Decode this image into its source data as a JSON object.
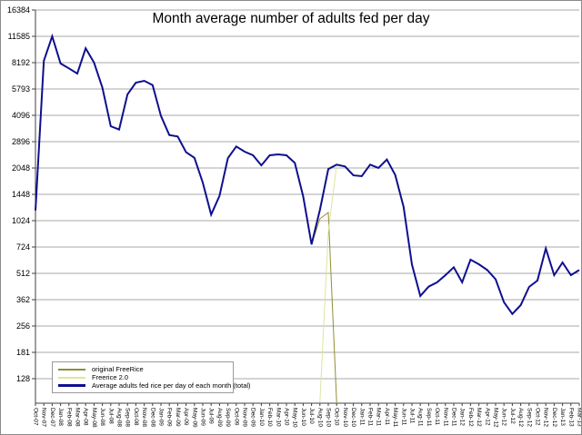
{
  "window": {
    "background": "#ffffff",
    "border_color": "#8a8a8a"
  },
  "chart_data": {
    "type": "line",
    "title": "Month average number of adults fed per day",
    "grid": "horizontal",
    "gridline_color": "#a8a8a8",
    "axis_color": "#404040",
    "tick_label_color": "#000000",
    "legend_position": "bottom-left",
    "y_axis": {
      "scale": "log2",
      "ticks": [
        16384,
        11585,
        8192,
        5793,
        4096,
        2896,
        2048,
        1448,
        1024,
        724,
        512,
        362,
        256,
        181,
        128
      ]
    },
    "x_labels": [
      "Oct-07",
      "Nov-07",
      "Dec-07",
      "Jan-08",
      "Feb-08",
      "Mar-08",
      "Apr-08",
      "May-08",
      "Jun-08",
      "Jul-08",
      "Aug-08",
      "Sep-08",
      "Oct-08",
      "Nov-08",
      "Dec-08",
      "Jan-09",
      "Feb-09",
      "Mar-09",
      "Apr-09",
      "May-09",
      "Jun-09",
      "Jul-09",
      "Aug-09",
      "Sep-09",
      "Oct-09",
      "Nov-09",
      "Dec-09",
      "Jan-10",
      "Feb-10",
      "Mar-10",
      "Apr-10",
      "May-10",
      "Jun-10",
      "Jul-10",
      "Aug-10",
      "Sep-10",
      "Oct-10",
      "Nov-10",
      "Dec-10",
      "Jan-11",
      "Feb-11",
      "Mar-11",
      "Apr-11",
      "May-11",
      "Jun-11",
      "Jul-11",
      "Aug-11",
      "Sep-11",
      "Oct-11",
      "Nov-11",
      "Dec-11",
      "Jan-12",
      "Feb-12",
      "Mar-12",
      "Apr-12",
      "May-12",
      "Jun-12",
      "Jul-12",
      "Aug-12",
      "Sep-12",
      "Oct-12",
      "Nov-12",
      "Dec-12",
      "Jan-13",
      "Feb-13",
      "Mar-13"
    ],
    "series": [
      {
        "name": "original FreeRice",
        "color": "#8f8f33",
        "stroke_width": 1,
        "values": [
          1170,
          8400,
          11585,
          8100,
          7600,
          7100,
          9900,
          8200,
          5900,
          3550,
          3400,
          5400,
          6300,
          6450,
          6100,
          4060,
          3160,
          3100,
          2520,
          2340,
          1690,
          1110,
          1420,
          2330,
          2720,
          2540,
          2420,
          2120,
          2420,
          2450,
          2420,
          2190,
          1410,
          750,
          1050,
          1140,
          0,
          null,
          null,
          null,
          null,
          null,
          null,
          null,
          null,
          null,
          null,
          null,
          null,
          null,
          null,
          null,
          null,
          null,
          null,
          null,
          null,
          null,
          null,
          null,
          null,
          null,
          null,
          null,
          null,
          null
        ]
      },
      {
        "name": "Freerice 2.0",
        "color": "#dce6a0",
        "stroke_width": 1,
        "values": [
          null,
          null,
          null,
          null,
          null,
          null,
          null,
          null,
          null,
          null,
          null,
          null,
          null,
          null,
          null,
          null,
          null,
          null,
          null,
          null,
          null,
          null,
          null,
          null,
          null,
          null,
          null,
          null,
          null,
          null,
          null,
          null,
          null,
          null,
          0,
          880,
          2140,
          2090,
          1860,
          1840,
          2140,
          2050,
          2290,
          1870,
          1230,
          575,
          380,
          430,
          455,
          500,
          555,
          455,
          613,
          577,
          535,
          474,
          350,
          300,
          337,
          428,
          466,
          710,
          500,
          590,
          500,
          535
        ]
      },
      {
        "name": "Average adults fed rice per day of each month (total)",
        "color": "#0f0f8f",
        "stroke_width": 2,
        "values": [
          1170,
          8400,
          11585,
          8100,
          7600,
          7100,
          9900,
          8200,
          5900,
          3550,
          3400,
          5400,
          6300,
          6450,
          6100,
          4060,
          3160,
          3100,
          2520,
          2340,
          1690,
          1110,
          1420,
          2330,
          2720,
          2540,
          2420,
          2120,
          2420,
          2450,
          2420,
          2190,
          1410,
          750,
          1180,
          2020,
          2140,
          2090,
          1860,
          1840,
          2140,
          2050,
          2290,
          1870,
          1230,
          575,
          380,
          430,
          455,
          500,
          555,
          455,
          613,
          577,
          535,
          474,
          350,
          300,
          337,
          428,
          466,
          710,
          500,
          590,
          500,
          535
        ]
      }
    ]
  }
}
